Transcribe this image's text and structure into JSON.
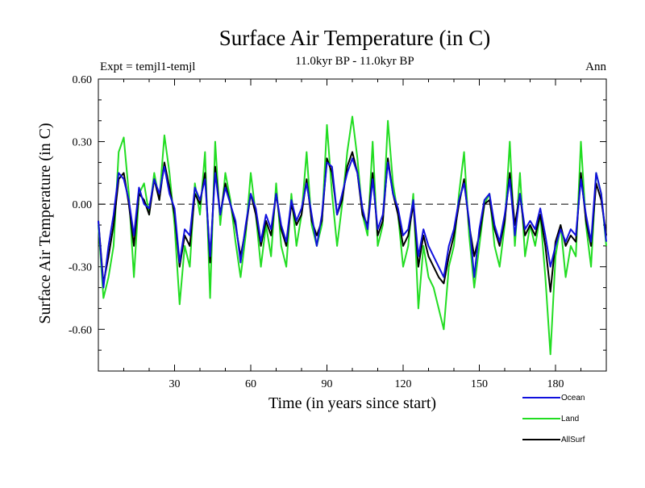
{
  "chart_data": {
    "type": "line",
    "title": "Surface Air Temperature (in C)",
    "subtitle": "11.0kyr BP - 11.0kyr BP",
    "left_label": "Expt = temjl1-temjl",
    "right_label": "Ann",
    "xlabel": "Time (in years since start)",
    "ylabel": "Surface Air Temperature (in C)",
    "xlim": [
      0,
      200
    ],
    "ylim": [
      -0.8,
      0.6
    ],
    "xticks": [
      30,
      60,
      90,
      120,
      150,
      180
    ],
    "xtick_labels": [
      "30",
      "60",
      "90",
      "120",
      "150",
      "180"
    ],
    "yticks": [
      -0.6,
      -0.3,
      0.0,
      0.3,
      0.6
    ],
    "ytick_labels": [
      "-0.60",
      "-0.30",
      "0.00",
      "0.30",
      "0.60"
    ],
    "zero_line": "dashed",
    "legend_position": "bottom-right",
    "series": [
      {
        "name": "Land",
        "color": "#22dd22",
        "x": [
          0,
          2,
          4,
          6,
          8,
          10,
          12,
          14,
          16,
          18,
          20,
          22,
          24,
          26,
          28,
          30,
          32,
          34,
          36,
          38,
          40,
          42,
          44,
          46,
          48,
          50,
          52,
          54,
          56,
          58,
          60,
          62,
          64,
          66,
          68,
          70,
          72,
          74,
          76,
          78,
          80,
          82,
          84,
          86,
          88,
          90,
          92,
          94,
          96,
          98,
          100,
          102,
          104,
          106,
          108,
          110,
          112,
          114,
          116,
          118,
          120,
          122,
          124,
          126,
          128,
          130,
          132,
          134,
          136,
          138,
          140,
          142,
          144,
          146,
          148,
          150,
          152,
          154,
          156,
          158,
          160,
          162,
          164,
          166,
          168,
          170,
          172,
          174,
          176,
          178,
          180,
          182,
          184,
          186,
          188,
          190,
          192,
          194,
          196,
          198,
          200
        ],
        "values": [
          -0.1,
          -0.45,
          -0.35,
          -0.2,
          0.25,
          0.32,
          0.05,
          -0.35,
          0.05,
          0.1,
          -0.05,
          0.15,
          0.02,
          0.33,
          0.15,
          -0.1,
          -0.48,
          -0.2,
          -0.3,
          0.1,
          -0.05,
          0.25,
          -0.45,
          0.3,
          -0.1,
          0.15,
          0.02,
          -0.18,
          -0.35,
          -0.15,
          0.15,
          -0.05,
          -0.3,
          -0.1,
          -0.25,
          0.1,
          -0.2,
          -0.3,
          0.05,
          -0.2,
          -0.05,
          0.25,
          -0.1,
          -0.2,
          -0.1,
          0.38,
          0.05,
          -0.2,
          0.0,
          0.25,
          0.42,
          0.22,
          -0.05,
          -0.15,
          0.3,
          -0.2,
          -0.1,
          0.4,
          0.1,
          -0.05,
          -0.3,
          -0.2,
          0.05,
          -0.5,
          -0.2,
          -0.35,
          -0.4,
          -0.5,
          -0.6,
          -0.3,
          -0.2,
          0.05,
          0.25,
          -0.15,
          -0.4,
          -0.2,
          0.0,
          0.05,
          -0.2,
          -0.3,
          -0.1,
          0.3,
          -0.2,
          0.15,
          -0.25,
          -0.1,
          -0.2,
          -0.05,
          -0.35,
          -0.72,
          -0.25,
          -0.1,
          -0.35,
          -0.2,
          -0.25,
          0.3,
          -0.1,
          -0.3,
          0.15,
          0.05,
          -0.2
        ]
      },
      {
        "name": "AllSurf",
        "color": "#000000",
        "x": [
          0,
          2,
          4,
          6,
          8,
          10,
          12,
          14,
          16,
          18,
          20,
          22,
          24,
          26,
          28,
          30,
          32,
          34,
          36,
          38,
          40,
          42,
          44,
          46,
          48,
          50,
          52,
          54,
          56,
          58,
          60,
          62,
          64,
          66,
          68,
          70,
          72,
          74,
          76,
          78,
          80,
          82,
          84,
          86,
          88,
          90,
          92,
          94,
          96,
          98,
          100,
          102,
          104,
          106,
          108,
          110,
          112,
          114,
          116,
          118,
          120,
          122,
          124,
          126,
          128,
          130,
          132,
          134,
          136,
          138,
          140,
          142,
          144,
          146,
          148,
          150,
          152,
          154,
          156,
          158,
          160,
          162,
          164,
          166,
          168,
          170,
          172,
          174,
          176,
          178,
          180,
          182,
          184,
          186,
          188,
          190,
          192,
          194,
          196,
          198,
          200
        ],
        "values": [
          -0.08,
          -0.38,
          -0.25,
          -0.1,
          0.12,
          0.15,
          0.0,
          -0.2,
          0.05,
          0.02,
          -0.05,
          0.12,
          0.02,
          0.2,
          0.08,
          -0.05,
          -0.3,
          -0.15,
          -0.2,
          0.05,
          0.0,
          0.15,
          -0.28,
          0.18,
          -0.05,
          0.1,
          0.0,
          -0.1,
          -0.25,
          -0.12,
          0.05,
          -0.05,
          -0.2,
          -0.08,
          -0.15,
          0.05,
          -0.12,
          -0.2,
          0.0,
          -0.1,
          -0.05,
          0.12,
          -0.08,
          -0.15,
          -0.08,
          0.22,
          0.15,
          -0.05,
          0.02,
          0.18,
          0.25,
          0.15,
          -0.05,
          -0.1,
          0.15,
          -0.15,
          -0.08,
          0.22,
          0.05,
          -0.05,
          -0.2,
          -0.15,
          0.0,
          -0.3,
          -0.15,
          -0.25,
          -0.3,
          -0.35,
          -0.38,
          -0.25,
          -0.15,
          0.0,
          0.12,
          -0.1,
          -0.25,
          -0.15,
          0.0,
          0.02,
          -0.12,
          -0.2,
          -0.08,
          0.15,
          -0.1,
          0.05,
          -0.15,
          -0.1,
          -0.15,
          -0.05,
          -0.2,
          -0.42,
          -0.18,
          -0.1,
          -0.2,
          -0.15,
          -0.18,
          0.15,
          -0.08,
          -0.2,
          0.1,
          0.02,
          -0.15
        ]
      },
      {
        "name": "Ocean",
        "color": "#1010dd",
        "x": [
          0,
          2,
          4,
          6,
          8,
          10,
          12,
          14,
          16,
          18,
          20,
          22,
          24,
          26,
          28,
          30,
          32,
          34,
          36,
          38,
          40,
          42,
          44,
          46,
          48,
          50,
          52,
          54,
          56,
          58,
          60,
          62,
          64,
          66,
          68,
          70,
          72,
          74,
          76,
          78,
          80,
          82,
          84,
          86,
          88,
          90,
          92,
          94,
          96,
          98,
          100,
          102,
          104,
          106,
          108,
          110,
          112,
          114,
          116,
          118,
          120,
          122,
          124,
          126,
          128,
          130,
          132,
          134,
          136,
          138,
          140,
          142,
          144,
          146,
          148,
          150,
          152,
          154,
          156,
          158,
          160,
          162,
          164,
          166,
          168,
          170,
          172,
          174,
          176,
          178,
          180,
          182,
          184,
          186,
          188,
          190,
          192,
          194,
          196,
          198,
          200
        ],
        "values": [
          -0.08,
          -0.4,
          -0.2,
          -0.05,
          0.15,
          0.12,
          0.02,
          -0.15,
          0.08,
          0.0,
          -0.02,
          0.12,
          0.05,
          0.18,
          0.05,
          -0.02,
          -0.28,
          -0.12,
          -0.15,
          0.08,
          0.02,
          0.12,
          -0.25,
          0.15,
          -0.05,
          0.08,
          0.0,
          -0.08,
          -0.28,
          -0.1,
          0.05,
          -0.02,
          -0.18,
          -0.05,
          -0.12,
          0.05,
          -0.1,
          -0.18,
          0.02,
          -0.08,
          -0.02,
          0.1,
          -0.05,
          -0.2,
          -0.05,
          0.2,
          0.18,
          -0.05,
          0.05,
          0.15,
          0.22,
          0.15,
          -0.02,
          -0.12,
          0.12,
          -0.12,
          -0.05,
          0.2,
          0.05,
          -0.02,
          -0.15,
          -0.12,
          0.02,
          -0.25,
          -0.12,
          -0.2,
          -0.25,
          -0.3,
          -0.35,
          -0.2,
          -0.12,
          0.02,
          0.1,
          -0.08,
          -0.35,
          -0.12,
          0.02,
          0.05,
          -0.1,
          -0.18,
          -0.05,
          0.12,
          -0.15,
          0.05,
          -0.12,
          -0.08,
          -0.12,
          -0.02,
          -0.15,
          -0.3,
          -0.2,
          -0.12,
          -0.18,
          -0.12,
          -0.15,
          0.12,
          -0.05,
          -0.18,
          0.15,
          0.05,
          -0.18
        ]
      }
    ],
    "legend_order": [
      "Ocean",
      "Land",
      "AllSurf"
    ]
  }
}
